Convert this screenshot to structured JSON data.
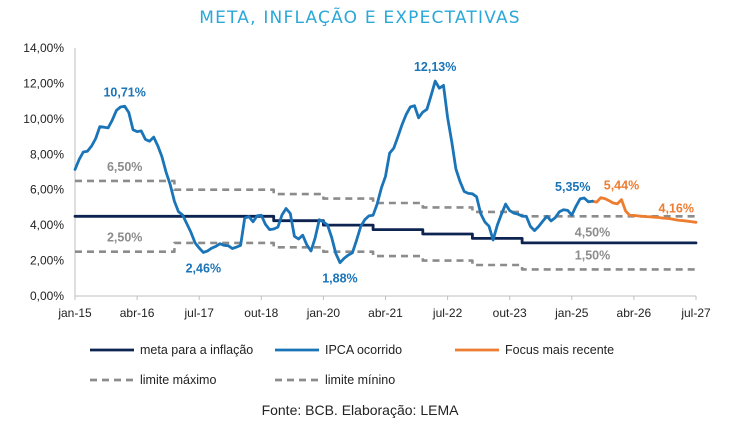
{
  "title": "META, INFLAÇÃO E EXPECTATIVAS",
  "source": "Fonte: BCB. Elaboração: LEMA",
  "colors": {
    "meta": "#0d2452",
    "ipca": "#1a74b8",
    "focus": "#ed7d31",
    "limits": "#8c8c8c",
    "title": "#2aa8d8"
  },
  "chart_data": {
    "type": "line",
    "ylim": [
      0,
      14
    ],
    "yticks": [
      0,
      2,
      4,
      6,
      8,
      10,
      12,
      14
    ],
    "ytick_labels": [
      "0,00%",
      "2,00%",
      "4,00%",
      "6,00%",
      "8,00%",
      "10,00%",
      "12,00%",
      "14,00%"
    ],
    "xlim": [
      "2015-01",
      "2027-07"
    ],
    "xtick_labels": [
      {
        "t": "2015-01",
        "label": "jan-15"
      },
      {
        "t": "2016-04",
        "label": "abr-16"
      },
      {
        "t": "2017-07",
        "label": "jul-17"
      },
      {
        "t": "2018-10",
        "label": "out-18"
      },
      {
        "t": "2020-01",
        "label": "jan-20"
      },
      {
        "t": "2021-04",
        "label": "abr-21"
      },
      {
        "t": "2022-07",
        "label": "jul-22"
      },
      {
        "t": "2023-10",
        "label": "out-23"
      },
      {
        "t": "2025-01",
        "label": "jan-25"
      },
      {
        "t": "2026-04",
        "label": "abr-26"
      },
      {
        "t": "2027-07",
        "label": "jul-27"
      }
    ],
    "series": [
      {
        "name": "meta para a inflação",
        "key": "meta",
        "dash": false,
        "points": [
          [
            "2015-01",
            4.5
          ],
          [
            "2019-01",
            4.5
          ],
          [
            "2019-01",
            4.25
          ],
          [
            "2020-01",
            4.25
          ],
          [
            "2020-01",
            4.0
          ],
          [
            "2021-01",
            4.0
          ],
          [
            "2021-01",
            3.75
          ],
          [
            "2022-01",
            3.75
          ],
          [
            "2022-01",
            3.5
          ],
          [
            "2023-01",
            3.5
          ],
          [
            "2023-01",
            3.25
          ],
          [
            "2024-01",
            3.25
          ],
          [
            "2024-01",
            3.0
          ],
          [
            "2027-07",
            3.0
          ]
        ]
      },
      {
        "name": "IPCA ocorrido",
        "key": "ipca",
        "dash": false,
        "points": [
          [
            "2015-01",
            7.14
          ],
          [
            "2015-02",
            7.7
          ],
          [
            "2015-03",
            8.13
          ],
          [
            "2015-04",
            8.17
          ],
          [
            "2015-05",
            8.47
          ],
          [
            "2015-06",
            8.89
          ],
          [
            "2015-07",
            9.56
          ],
          [
            "2015-08",
            9.53
          ],
          [
            "2015-09",
            9.49
          ],
          [
            "2015-10",
            9.93
          ],
          [
            "2015-11",
            10.48
          ],
          [
            "2015-12",
            10.67
          ],
          [
            "2016-01",
            10.71
          ],
          [
            "2016-02",
            10.36
          ],
          [
            "2016-03",
            9.39
          ],
          [
            "2016-04",
            9.28
          ],
          [
            "2016-05",
            9.32
          ],
          [
            "2016-06",
            8.84
          ],
          [
            "2016-07",
            8.74
          ],
          [
            "2016-08",
            8.97
          ],
          [
            "2016-09",
            8.48
          ],
          [
            "2016-10",
            7.87
          ],
          [
            "2016-11",
            6.99
          ],
          [
            "2016-12",
            6.29
          ],
          [
            "2017-01",
            5.35
          ],
          [
            "2017-02",
            4.76
          ],
          [
            "2017-03",
            4.57
          ],
          [
            "2017-04",
            4.08
          ],
          [
            "2017-05",
            3.6
          ],
          [
            "2017-06",
            3.0
          ],
          [
            "2017-07",
            2.71
          ],
          [
            "2017-08",
            2.46
          ],
          [
            "2017-09",
            2.54
          ],
          [
            "2017-10",
            2.7
          ],
          [
            "2017-11",
            2.8
          ],
          [
            "2017-12",
            2.95
          ],
          [
            "2018-01",
            2.86
          ],
          [
            "2018-02",
            2.84
          ],
          [
            "2018-03",
            2.68
          ],
          [
            "2018-04",
            2.76
          ],
          [
            "2018-05",
            2.86
          ],
          [
            "2018-06",
            4.39
          ],
          [
            "2018-07",
            4.48
          ],
          [
            "2018-08",
            4.19
          ],
          [
            "2018-09",
            4.53
          ],
          [
            "2018-10",
            4.56
          ],
          [
            "2018-11",
            4.05
          ],
          [
            "2018-12",
            3.75
          ],
          [
            "2019-01",
            3.78
          ],
          [
            "2019-02",
            3.89
          ],
          [
            "2019-03",
            4.58
          ],
          [
            "2019-04",
            4.94
          ],
          [
            "2019-05",
            4.66
          ],
          [
            "2019-06",
            3.37
          ],
          [
            "2019-07",
            3.22
          ],
          [
            "2019-08",
            3.43
          ],
          [
            "2019-09",
            2.89
          ],
          [
            "2019-10",
            2.54
          ],
          [
            "2019-11",
            3.27
          ],
          [
            "2019-12",
            4.31
          ],
          [
            "2020-01",
            4.19
          ],
          [
            "2020-02",
            4.01
          ],
          [
            "2020-03",
            3.3
          ],
          [
            "2020-04",
            2.4
          ],
          [
            "2020-05",
            1.88
          ],
          [
            "2020-06",
            2.13
          ],
          [
            "2020-07",
            2.31
          ],
          [
            "2020-08",
            2.44
          ],
          [
            "2020-09",
            3.14
          ],
          [
            "2020-10",
            3.92
          ],
          [
            "2020-11",
            4.31
          ],
          [
            "2020-12",
            4.52
          ],
          [
            "2021-01",
            4.56
          ],
          [
            "2021-02",
            5.2
          ],
          [
            "2021-03",
            6.1
          ],
          [
            "2021-04",
            6.76
          ],
          [
            "2021-05",
            8.06
          ],
          [
            "2021-06",
            8.35
          ],
          [
            "2021-07",
            8.99
          ],
          [
            "2021-08",
            9.68
          ],
          [
            "2021-09",
            10.25
          ],
          [
            "2021-10",
            10.67
          ],
          [
            "2021-11",
            10.74
          ],
          [
            "2021-12",
            10.06
          ],
          [
            "2022-01",
            10.38
          ],
          [
            "2022-02",
            10.54
          ],
          [
            "2022-03",
            11.3
          ],
          [
            "2022-04",
            12.13
          ],
          [
            "2022-05",
            11.73
          ],
          [
            "2022-06",
            11.89
          ],
          [
            "2022-07",
            10.07
          ],
          [
            "2022-08",
            8.73
          ],
          [
            "2022-09",
            7.17
          ],
          [
            "2022-10",
            6.47
          ],
          [
            "2022-11",
            5.9
          ],
          [
            "2022-12",
            5.79
          ],
          [
            "2023-01",
            5.77
          ],
          [
            "2023-02",
            5.6
          ],
          [
            "2023-03",
            4.65
          ],
          [
            "2023-04",
            4.18
          ],
          [
            "2023-05",
            3.94
          ],
          [
            "2023-06",
            3.16
          ],
          [
            "2023-07",
            3.99
          ],
          [
            "2023-08",
            4.61
          ],
          [
            "2023-09",
            5.19
          ],
          [
            "2023-10",
            4.82
          ],
          [
            "2023-11",
            4.68
          ],
          [
            "2023-12",
            4.62
          ],
          [
            "2024-01",
            4.51
          ],
          [
            "2024-02",
            4.5
          ],
          [
            "2024-03",
            3.93
          ],
          [
            "2024-04",
            3.69
          ],
          [
            "2024-05",
            3.93
          ],
          [
            "2024-06",
            4.23
          ],
          [
            "2024-07",
            4.5
          ],
          [
            "2024-08",
            4.24
          ],
          [
            "2024-09",
            4.42
          ],
          [
            "2024-10",
            4.76
          ],
          [
            "2024-11",
            4.87
          ],
          [
            "2024-12",
            4.83
          ],
          [
            "2025-01",
            4.56
          ],
          [
            "2025-02",
            5.06
          ],
          [
            "2025-03",
            5.48
          ],
          [
            "2025-04",
            5.53
          ],
          [
            "2025-05",
            5.32
          ],
          [
            "2025-06",
            5.35
          ]
        ]
      },
      {
        "name": "Focus mais recente",
        "key": "focus",
        "dash": false,
        "points": [
          [
            "2025-06",
            5.35
          ],
          [
            "2025-07",
            5.3
          ],
          [
            "2025-08",
            5.55
          ],
          [
            "2025-09",
            5.5
          ],
          [
            "2025-10",
            5.38
          ],
          [
            "2025-11",
            5.25
          ],
          [
            "2025-12",
            5.2
          ],
          [
            "2026-01",
            5.44
          ],
          [
            "2026-02",
            4.8
          ],
          [
            "2026-03",
            4.55
          ],
          [
            "2026-04",
            4.55
          ],
          [
            "2026-05",
            4.52
          ],
          [
            "2026-06",
            4.5
          ],
          [
            "2026-07",
            4.48
          ],
          [
            "2026-08",
            4.47
          ],
          [
            "2026-09",
            4.45
          ],
          [
            "2026-10",
            4.43
          ],
          [
            "2026-11",
            4.4
          ],
          [
            "2026-12",
            4.38
          ],
          [
            "2027-01",
            4.35
          ],
          [
            "2027-02",
            4.3
          ],
          [
            "2027-03",
            4.27
          ],
          [
            "2027-04",
            4.25
          ],
          [
            "2027-05",
            4.22
          ],
          [
            "2027-06",
            4.19
          ],
          [
            "2027-07",
            4.16
          ]
        ]
      },
      {
        "name": "limite máximo",
        "key": "limits",
        "dash": true,
        "points": [
          [
            "2015-01",
            6.5
          ],
          [
            "2017-01",
            6.5
          ],
          [
            "2017-01",
            6.0
          ],
          [
            "2019-01",
            6.0
          ],
          [
            "2019-01",
            5.75
          ],
          [
            "2020-01",
            5.75
          ],
          [
            "2020-01",
            5.5
          ],
          [
            "2021-01",
            5.5
          ],
          [
            "2021-01",
            5.25
          ],
          [
            "2022-01",
            5.25
          ],
          [
            "2022-01",
            5.0
          ],
          [
            "2023-01",
            5.0
          ],
          [
            "2023-01",
            4.75
          ],
          [
            "2024-01",
            4.75
          ],
          [
            "2024-01",
            4.5
          ],
          [
            "2027-07",
            4.5
          ]
        ]
      },
      {
        "name": "limite mínino",
        "key": "limits",
        "dash": true,
        "points": [
          [
            "2015-01",
            2.5
          ],
          [
            "2017-01",
            2.5
          ],
          [
            "2017-01",
            3.0
          ],
          [
            "2019-01",
            3.0
          ],
          [
            "2019-01",
            2.75
          ],
          [
            "2020-01",
            2.75
          ],
          [
            "2020-01",
            2.5
          ],
          [
            "2021-01",
            2.5
          ],
          [
            "2021-01",
            2.25
          ],
          [
            "2022-01",
            2.25
          ],
          [
            "2022-01",
            2.0
          ],
          [
            "2023-01",
            2.0
          ],
          [
            "2023-01",
            1.75
          ],
          [
            "2024-01",
            1.75
          ],
          [
            "2024-01",
            1.5
          ],
          [
            "2027-07",
            1.5
          ]
        ]
      }
    ],
    "annotations": [
      {
        "text": "10,71%",
        "t": "2016-01",
        "y": 10.71,
        "color_key": "ipca",
        "pos": "above"
      },
      {
        "text": "6,50%",
        "t": "2016-01",
        "y": 6.5,
        "color_key": "limits",
        "pos": "above"
      },
      {
        "text": "2,50%",
        "t": "2016-01",
        "y": 2.5,
        "color_key": "limits",
        "pos": "above"
      },
      {
        "text": "2,46%",
        "t": "2017-08",
        "y": 2.46,
        "color_key": "ipca",
        "pos": "below"
      },
      {
        "text": "1,88%",
        "t": "2020-05",
        "y": 1.88,
        "color_key": "ipca",
        "pos": "below"
      },
      {
        "text": "12,13%",
        "t": "2022-04",
        "y": 12.13,
        "color_key": "ipca",
        "pos": "above"
      },
      {
        "text": "5,35%",
        "t": "2025-06",
        "y": 5.35,
        "color_key": "ipca",
        "pos": "above-left"
      },
      {
        "text": "5,44%",
        "t": "2026-01",
        "y": 5.44,
        "color_key": "focus",
        "pos": "above"
      },
      {
        "text": "4,16%",
        "t": "2027-07",
        "y": 4.16,
        "color_key": "focus",
        "pos": "above-left"
      },
      {
        "text": "4,50%",
        "t": "2025-06",
        "y": 4.5,
        "color_key": "limits",
        "pos": "below"
      },
      {
        "text": "1,50%",
        "t": "2025-06",
        "y": 1.5,
        "color_key": "limits",
        "pos": "above"
      }
    ],
    "legend": {
      "placement": "bottom",
      "items": [
        {
          "label": "meta para a inflação",
          "color_key": "meta",
          "dash": false
        },
        {
          "label": "IPCA ocorrido",
          "color_key": "ipca",
          "dash": false
        },
        {
          "label": "Focus mais recente",
          "color_key": "focus",
          "dash": false
        },
        {
          "label": "limite máximo",
          "color_key": "limits",
          "dash": true
        },
        {
          "label": "limite mínino",
          "color_key": "limits",
          "dash": true
        }
      ]
    },
    "grid": false
  }
}
